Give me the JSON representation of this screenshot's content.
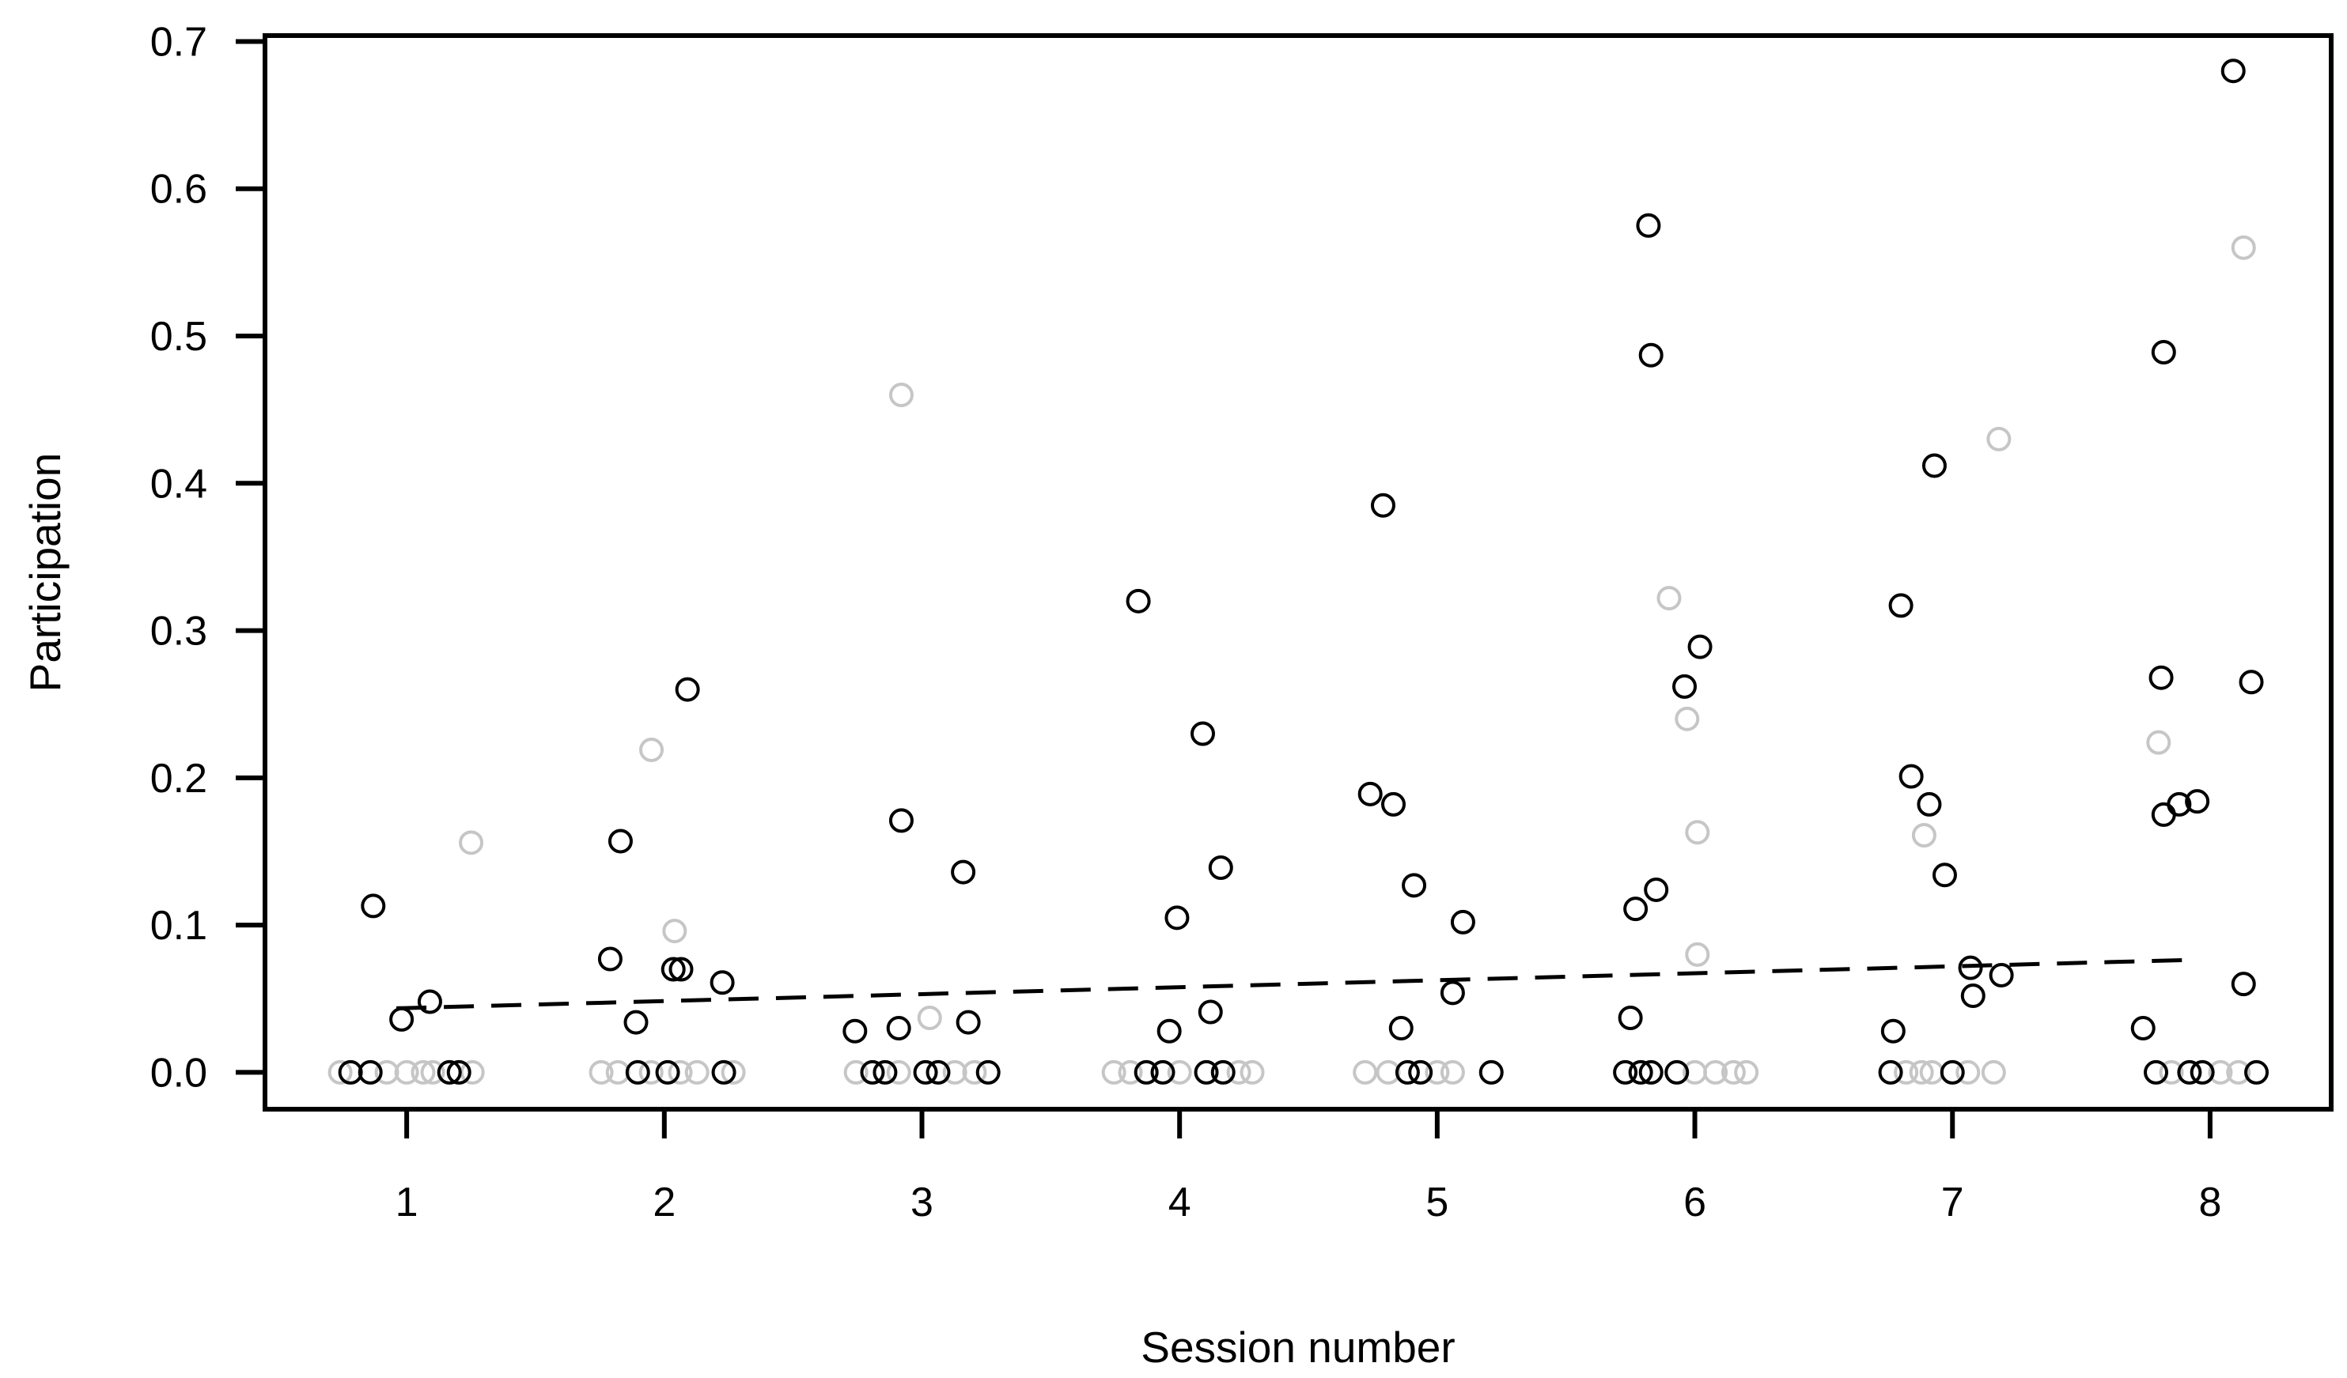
{
  "figure": {
    "background": "#ffffff",
    "axis_color": "#000000",
    "gray_marker_color": "#c6c6c6",
    "black_marker_color": "#000000"
  },
  "chart_data": {
    "type": "scatter",
    "title": "",
    "xlabel": "Session number",
    "ylabel": "Participation",
    "x_ticks": [
      1,
      2,
      3,
      4,
      5,
      6,
      7,
      8
    ],
    "y_tick_labels": [
      "0.0",
      "0.1",
      "0.2",
      "0.3",
      "0.4",
      "0.5",
      "0.6",
      "0.7"
    ],
    "y_tick_values": [
      0.0,
      0.1,
      0.2,
      0.3,
      0.4,
      0.5,
      0.6,
      0.7
    ],
    "xlim": [
      0.45,
      8.47
    ],
    "ylim": [
      -0.025,
      0.704
    ],
    "grid": false,
    "legend": "none",
    "marker": "open-circle",
    "series": [
      {
        "name": "gray-observations",
        "color": "#c6c6c6",
        "points": [
          [
            1.25,
            0.156
          ],
          [
            1.95,
            0.219
          ],
          [
            2.04,
            0.096
          ],
          [
            2.92,
            0.46
          ],
          [
            3.03,
            0.037
          ],
          [
            5.9,
            0.322
          ],
          [
            5.97,
            0.24
          ],
          [
            6.01,
            0.163
          ],
          [
            6.01,
            0.08
          ],
          [
            6.89,
            0.161
          ],
          [
            7.18,
            0.43
          ],
          [
            7.8,
            0.224
          ],
          [
            8.13,
            0.56
          ],
          [
            0.742,
            0
          ],
          [
            0.923,
            0
          ],
          [
            1.0,
            0
          ],
          [
            1.064,
            0
          ],
          [
            1.101,
            0
          ],
          [
            1.255,
            0
          ],
          [
            1.755,
            0
          ],
          [
            1.82,
            0
          ],
          [
            1.949,
            0
          ],
          [
            2.062,
            0
          ],
          [
            2.127,
            0
          ],
          [
            2.268,
            0
          ],
          [
            2.744,
            0
          ],
          [
            2.91,
            0
          ],
          [
            3.128,
            0
          ],
          [
            3.204,
            0
          ],
          [
            3.745,
            0
          ],
          [
            3.809,
            0
          ],
          [
            4.0,
            0
          ],
          [
            4.23,
            0
          ],
          [
            4.282,
            0
          ],
          [
            4.72,
            0
          ],
          [
            4.81,
            0
          ],
          [
            5.0,
            0
          ],
          [
            5.06,
            0
          ],
          [
            6.0,
            0
          ],
          [
            6.08,
            0
          ],
          [
            6.15,
            0
          ],
          [
            6.2,
            0
          ],
          [
            6.82,
            0
          ],
          [
            6.88,
            0
          ],
          [
            6.92,
            0
          ],
          [
            7.06,
            0
          ],
          [
            7.16,
            0
          ],
          [
            7.85,
            0
          ],
          [
            8.04,
            0
          ],
          [
            8.11,
            0
          ]
        ]
      },
      {
        "name": "black-observations",
        "color": "#000000",
        "points": [
          [
            0.87,
            0.113
          ],
          [
            0.98,
            0.036
          ],
          [
            1.09,
            0.048
          ],
          [
            1.79,
            0.077
          ],
          [
            1.83,
            0.157
          ],
          [
            1.89,
            0.034
          ],
          [
            2.035,
            0.07
          ],
          [
            2.065,
            0.07
          ],
          [
            2.09,
            0.26
          ],
          [
            2.225,
            0.061
          ],
          [
            2.74,
            0.028
          ],
          [
            2.91,
            0.03
          ],
          [
            2.92,
            0.171
          ],
          [
            3.16,
            0.136
          ],
          [
            3.18,
            0.034
          ],
          [
            3.84,
            0.32
          ],
          [
            3.96,
            0.028
          ],
          [
            3.99,
            0.105
          ],
          [
            4.09,
            0.23
          ],
          [
            4.12,
            0.041
          ],
          [
            4.16,
            0.139
          ],
          [
            4.74,
            0.189
          ],
          [
            4.79,
            0.385
          ],
          [
            4.83,
            0.182
          ],
          [
            4.86,
            0.03
          ],
          [
            4.91,
            0.127
          ],
          [
            5.06,
            0.054
          ],
          [
            5.1,
            0.102
          ],
          [
            5.75,
            0.037
          ],
          [
            5.77,
            0.111
          ],
          [
            5.82,
            0.575
          ],
          [
            5.83,
            0.487
          ],
          [
            5.85,
            0.124
          ],
          [
            5.96,
            0.262
          ],
          [
            6.02,
            0.289
          ],
          [
            6.77,
            0.028
          ],
          [
            6.8,
            0.317
          ],
          [
            6.84,
            0.201
          ],
          [
            6.91,
            0.182
          ],
          [
            6.93,
            0.412
          ],
          [
            6.97,
            0.134
          ],
          [
            7.07,
            0.071
          ],
          [
            7.08,
            0.052
          ],
          [
            7.19,
            0.066
          ],
          [
            7.74,
            0.03
          ],
          [
            7.81,
            0.268
          ],
          [
            7.82,
            0.489
          ],
          [
            7.82,
            0.175
          ],
          [
            7.88,
            0.182
          ],
          [
            7.95,
            0.184
          ],
          [
            8.09,
            0.68
          ],
          [
            8.13,
            0.06
          ],
          [
            8.16,
            0.265
          ],
          [
            0.782,
            0
          ],
          [
            0.859,
            0
          ],
          [
            1.166,
            0
          ],
          [
            1.203,
            0
          ],
          [
            1.897,
            0
          ],
          [
            2.013,
            0
          ],
          [
            2.231,
            0
          ],
          [
            2.808,
            0
          ],
          [
            2.857,
            0
          ],
          [
            3.014,
            0
          ],
          [
            3.063,
            0
          ],
          [
            3.257,
            0
          ],
          [
            3.871,
            0
          ],
          [
            3.935,
            0
          ],
          [
            4.104,
            0
          ],
          [
            4.169,
            0
          ],
          [
            4.885,
            0
          ],
          [
            4.935,
            0
          ],
          [
            5.21,
            0
          ],
          [
            5.73,
            0
          ],
          [
            5.79,
            0
          ],
          [
            5.83,
            0
          ],
          [
            5.93,
            0
          ],
          [
            6.76,
            0
          ],
          [
            7.0,
            0
          ],
          [
            7.79,
            0
          ],
          [
            7.92,
            0
          ],
          [
            7.97,
            0
          ],
          [
            8.18,
            0
          ]
        ]
      }
    ],
    "trend_line": {
      "style": "dashed",
      "color": "#000000",
      "x": [
        0.96,
        7.95
      ],
      "y": [
        0.0435,
        0.0765
      ]
    }
  }
}
